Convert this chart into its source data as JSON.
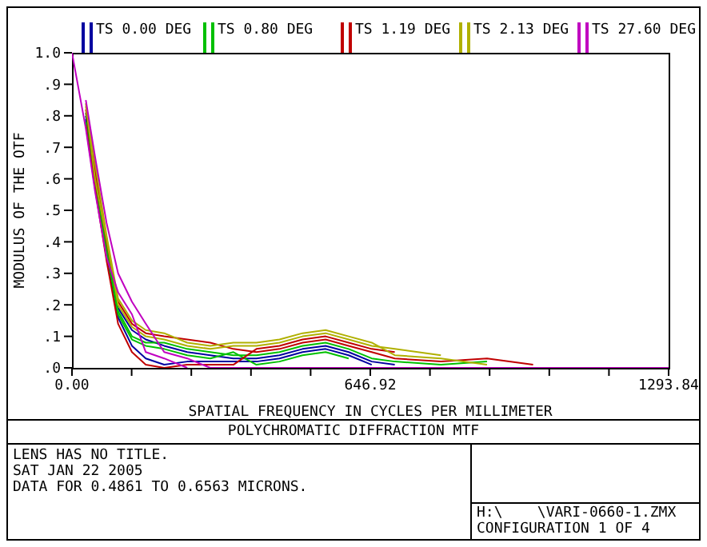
{
  "chart_data": {
    "type": "line",
    "title": "POLYCHROMATIC DIFFRACTION MTF",
    "xlabel": "SPATIAL FREQUENCY IN CYCLES PER MILLIMETER",
    "ylabel": "MODULUS OF THE OTF",
    "annotations": [
      "LENS HAS NO TITLE.",
      "SAT JAN 22 2005",
      "DATA FOR 0.4861 TO 0.6563 MICRONS.",
      "H:\\    \\VARI-0660-1.ZMX",
      "CONFIGURATION 1 OF 4"
    ],
    "x": [
      0,
      30,
      50,
      75,
      100,
      130,
      160,
      200,
      250,
      300,
      350,
      400,
      450,
      500,
      550,
      600,
      650,
      700,
      800,
      900,
      1000,
      1293.84
    ],
    "series": [
      {
        "name": "TS 0.00 DEG",
        "color": "#0000a0",
        "values": [
          null,
          0.8,
          0.61,
          0.38,
          0.19,
          0.12,
          0.09,
          0.07,
          0.05,
          0.04,
          0.03,
          0.03,
          0.04,
          0.06,
          0.07,
          0.05,
          0.02,
          0.01,
          null,
          null,
          null,
          null
        ]
      },
      {
        "color": "#0000a0",
        "values": [
          null,
          0.79,
          0.59,
          0.36,
          0.16,
          0.07,
          0.03,
          0.01,
          0.02,
          0.02,
          0.02,
          0.02,
          0.03,
          0.05,
          0.06,
          0.04,
          0.01,
          null,
          null,
          null,
          null,
          null
        ]
      },
      {
        "name": "TS 0.80 DEG",
        "color": "#00c000",
        "values": [
          null,
          0.81,
          0.62,
          0.39,
          0.18,
          0.1,
          0.08,
          0.08,
          0.06,
          0.05,
          0.04,
          0.04,
          0.05,
          0.07,
          0.08,
          0.06,
          0.03,
          0.02,
          0.01,
          0.02,
          null,
          null
        ]
      },
      {
        "color": "#00c000",
        "values": [
          null,
          0.78,
          0.58,
          0.37,
          0.17,
          0.09,
          0.07,
          0.06,
          0.04,
          0.03,
          0.05,
          0.01,
          0.02,
          0.04,
          0.05,
          0.03,
          null,
          null,
          null,
          null,
          null,
          null
        ]
      },
      {
        "name": "TS 1.19 DEG",
        "color": "#c00000",
        "values": [
          null,
          0.82,
          0.63,
          0.4,
          0.21,
          0.14,
          0.11,
          0.1,
          0.09,
          0.08,
          0.06,
          0.05,
          0.06,
          0.08,
          0.09,
          0.07,
          0.05,
          0.03,
          0.02,
          0.03,
          0.01,
          null
        ]
      },
      {
        "color": "#c00000",
        "values": [
          null,
          0.77,
          0.57,
          0.34,
          0.14,
          0.05,
          0.01,
          0,
          0.01,
          0.01,
          0.01,
          0.06,
          0.07,
          0.09,
          0.1,
          0.08,
          0.06,
          0.05,
          null,
          null,
          null,
          null
        ]
      },
      {
        "name": "TS 2.13 DEG",
        "color": "#b0b000",
        "values": [
          null,
          0.83,
          0.65,
          0.42,
          0.22,
          0.15,
          0.12,
          0.11,
          0.08,
          0.07,
          0.08,
          0.08,
          0.09,
          0.11,
          0.12,
          0.1,
          0.08,
          0.04,
          0.03,
          0.01,
          null,
          null
        ]
      },
      {
        "color": "#b0b000",
        "values": [
          null,
          0.84,
          0.6,
          0.41,
          0.2,
          0.13,
          0.1,
          0.09,
          0.07,
          0.06,
          0.07,
          0.07,
          0.08,
          0.1,
          0.11,
          0.09,
          0.07,
          0.06,
          0.04,
          null,
          null,
          null
        ]
      },
      {
        "name": "TS 27.60 DEG",
        "color": "#c000c0",
        "values": [
          null,
          0.85,
          0.67,
          0.46,
          0.3,
          0.21,
          0.14,
          0.05,
          0.03,
          0,
          0,
          0,
          0,
          0,
          0,
          0,
          0,
          0,
          0,
          0,
          0,
          0
        ]
      },
      {
        "color": "#c000c0",
        "values": [
          1,
          0.76,
          0.56,
          0.35,
          0.24,
          0.17,
          0.05,
          0.03,
          0,
          null,
          null,
          null,
          null,
          null,
          null,
          null,
          null,
          null,
          null,
          null,
          null,
          null
        ]
      }
    ],
    "xlim": [
      0,
      1293.84
    ],
    "xticks": [
      {
        "value": 0,
        "label": "0.00"
      },
      {
        "value": 129.384,
        "label": null
      },
      {
        "value": 258.768,
        "label": null
      },
      {
        "value": 388.152,
        "label": null
      },
      {
        "value": 517.536,
        "label": null
      },
      {
        "value": 646.92,
        "label": "646.92"
      },
      {
        "value": 776.304,
        "label": null
      },
      {
        "value": 905.688,
        "label": null
      },
      {
        "value": 1035.072,
        "label": null
      },
      {
        "value": 1164.456,
        "label": null
      },
      {
        "value": 1293.84,
        "label": "1293.84"
      }
    ],
    "ylim": [
      0,
      1
    ],
    "yticks": [
      {
        "value": 0,
        "label": ".0"
      },
      {
        "value": 0.1,
        "label": ".1"
      },
      {
        "value": 0.2,
        "label": ".2"
      },
      {
        "value": 0.3,
        "label": ".3"
      },
      {
        "value": 0.4,
        "label": ".4"
      },
      {
        "value": 0.5,
        "label": ".5"
      },
      {
        "value": 0.6,
        "label": ".6"
      },
      {
        "value": 0.7,
        "label": ".7"
      },
      {
        "value": 0.8,
        "label": ".8"
      },
      {
        "value": 0.9,
        "label": ".9"
      },
      {
        "value": 1,
        "label": "1.0"
      }
    ],
    "grid": false,
    "legend": "top",
    "marker": "none",
    "line_style": "solid"
  }
}
